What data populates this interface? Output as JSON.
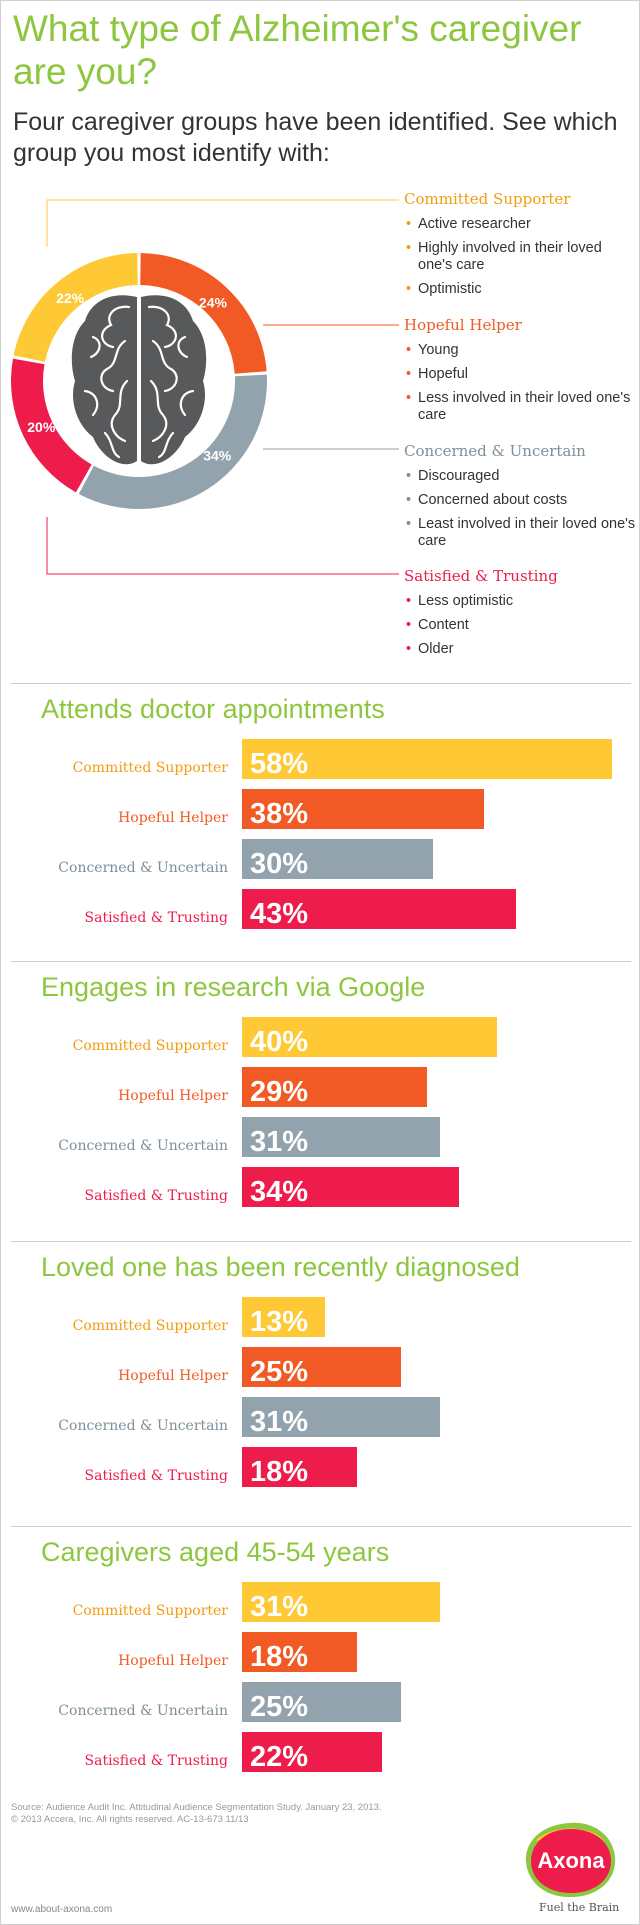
{
  "header": {
    "title": "What type of Alzheimer's caregiver are you?",
    "subtitle": "Four caregiver groups have been identified. See which group you most identify with:"
  },
  "colors": {
    "committed": "#ffc935",
    "hopeful": "#f15a24",
    "concerned": "#93a3ae",
    "satisfied": "#ed1c4a",
    "accent_green": "#8dc63f"
  },
  "groups": [
    {
      "name": "Committed Supporter",
      "traits": [
        "Active researcher",
        "Highly involved in their loved one's care",
        "Optimistic"
      ]
    },
    {
      "name": "Hopeful Helper",
      "traits": [
        "Young",
        "Hopeful",
        "Less involved in their loved one's care"
      ]
    },
    {
      "name": "Concerned & Uncertain",
      "traits": [
        "Discouraged",
        "Concerned about costs",
        "Least involved in their loved one's care"
      ]
    },
    {
      "name": "Satisfied & Trusting",
      "traits": [
        "Less optimistic",
        "Content",
        "Older"
      ]
    }
  ],
  "chart_data": [
    {
      "type": "pie",
      "categories": [
        "Committed Supporter",
        "Hopeful Helper",
        "Concerned & Uncertain",
        "Satisfied & Trusting"
      ],
      "values": [
        22,
        24,
        34,
        20
      ],
      "labels": [
        "22%",
        "24%",
        "34%",
        "20%"
      ]
    },
    {
      "type": "bar",
      "title": "Attends doctor appointments",
      "categories": [
        "Committed Supporter",
        "Hopeful Helper",
        "Concerned & Uncertain",
        "Satisfied & Trusting"
      ],
      "values": [
        58,
        38,
        30,
        43
      ],
      "labels": [
        "58%",
        "38%",
        "30%",
        "43%"
      ]
    },
    {
      "type": "bar",
      "title": "Engages in research via Google",
      "categories": [
        "Committed Supporter",
        "Hopeful Helper",
        "Concerned & Uncertain",
        "Satisfied & Trusting"
      ],
      "values": [
        40,
        29,
        31,
        34
      ],
      "labels": [
        "40%",
        "29%",
        "31%",
        "34%"
      ]
    },
    {
      "type": "bar",
      "title": "Loved one has been recently diagnosed",
      "categories": [
        "Committed Supporter",
        "Hopeful Helper",
        "Concerned & Uncertain",
        "Satisfied & Trusting"
      ],
      "values": [
        13,
        25,
        31,
        18
      ],
      "labels": [
        "13%",
        "25%",
        "31%",
        "18%"
      ]
    },
    {
      "type": "bar",
      "title": "Caregivers aged 45-54 years",
      "categories": [
        "Committed Supporter",
        "Hopeful Helper",
        "Concerned & Uncertain",
        "Satisfied & Trusting"
      ],
      "values": [
        31,
        18,
        25,
        22
      ],
      "labels": [
        "31%",
        "18%",
        "25%",
        "22%"
      ]
    }
  ],
  "footer": {
    "source_line1": "Source: Audience Audit Inc. Attitudinal Audience Segmentation Study. January 23, 2013.",
    "source_line2": "© 2013 Accera, Inc.  All rights reserved.  AC-13-673  11/13",
    "url": "www.about-axona.com",
    "logo_text": "Axona",
    "tagline": "Fuel the Brain"
  }
}
